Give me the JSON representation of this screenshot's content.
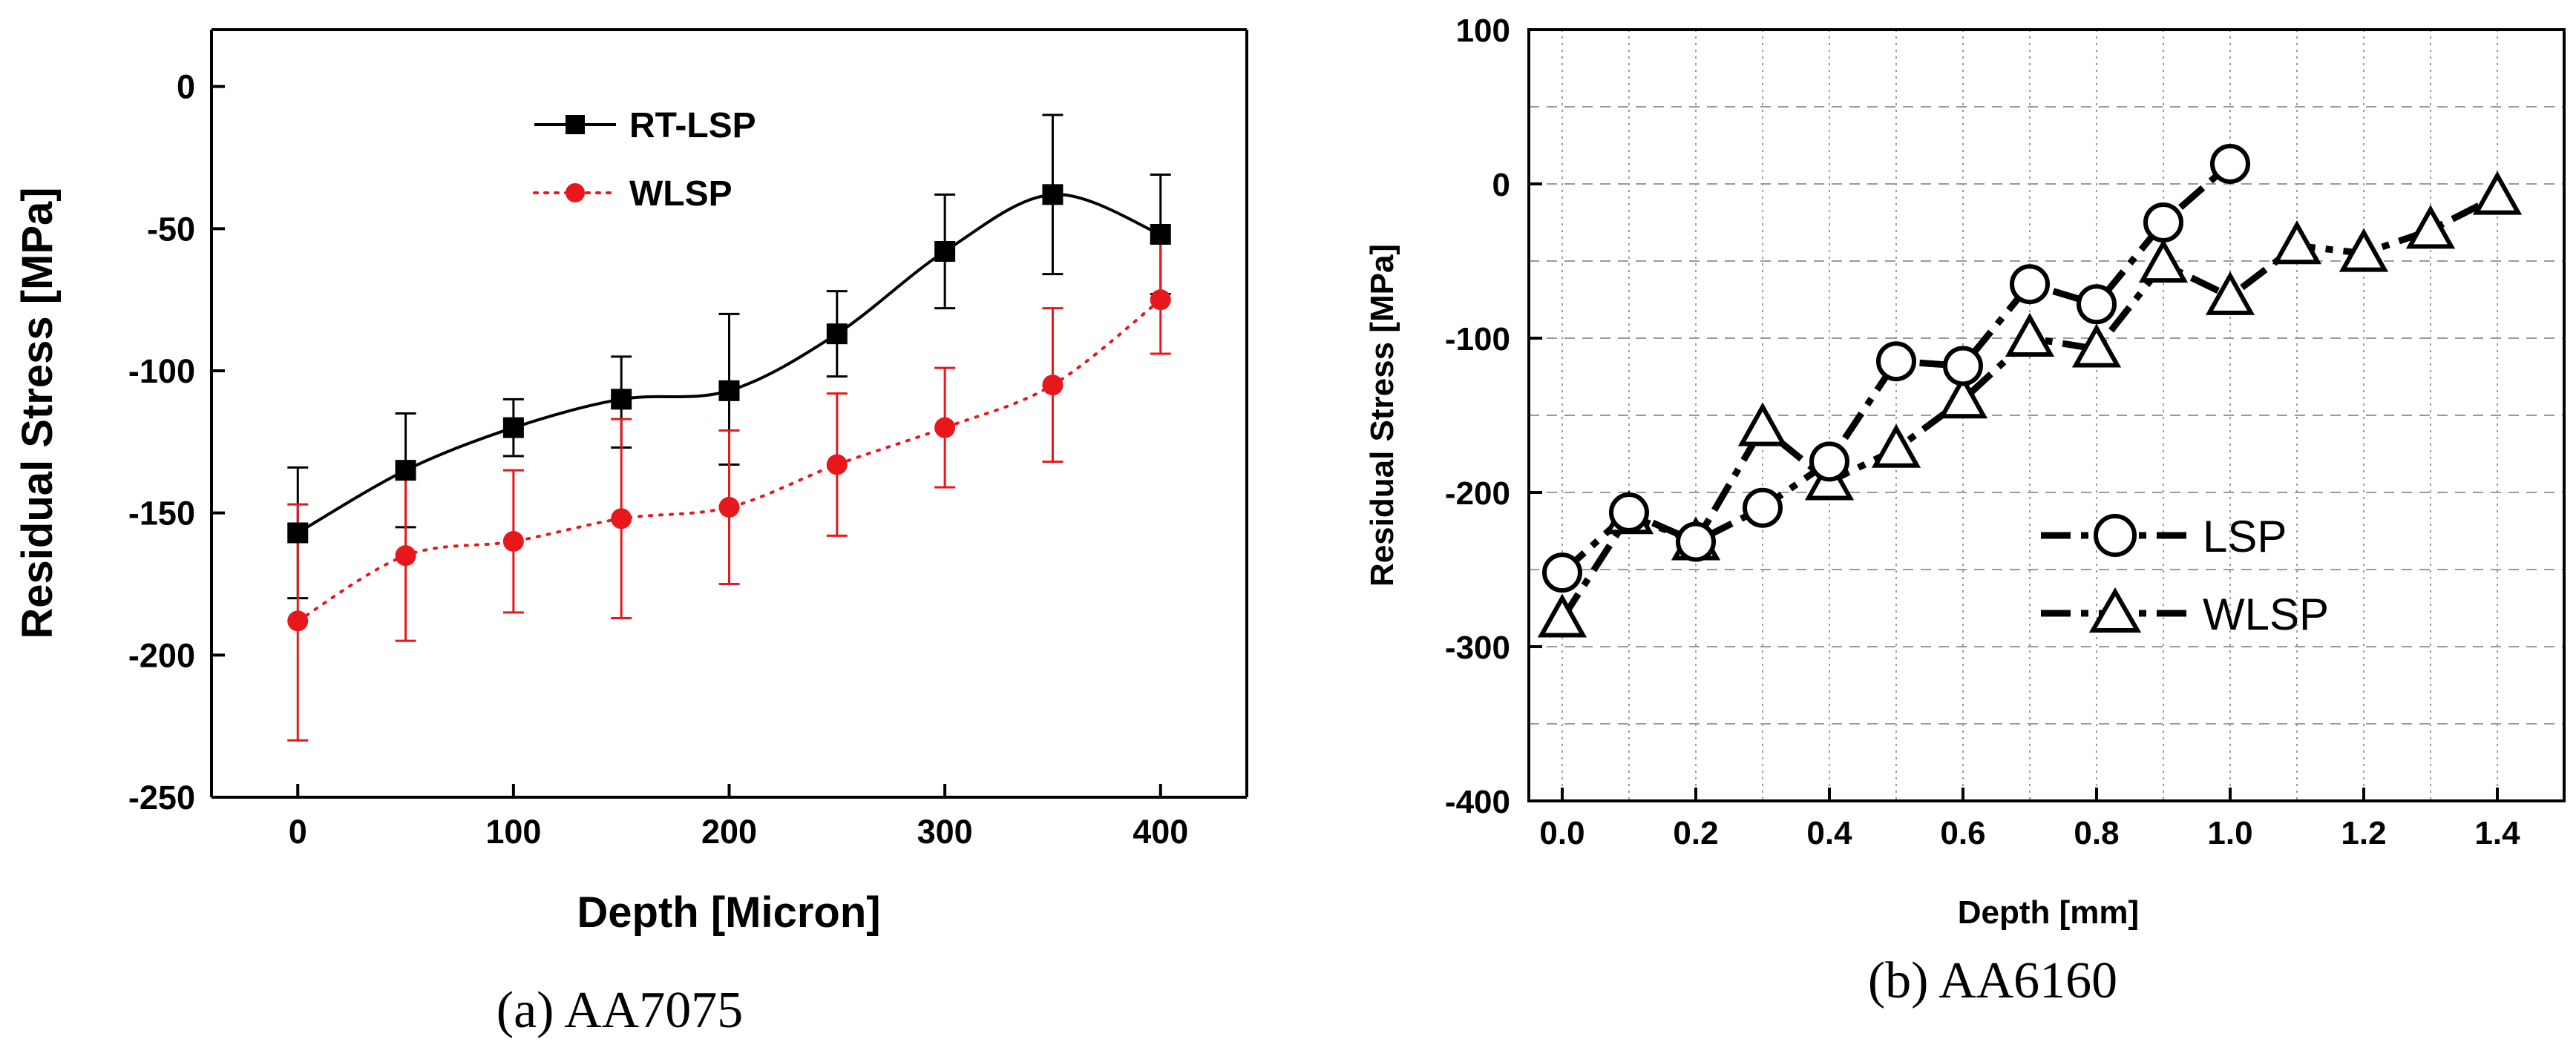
{
  "chart_data": [
    {
      "type": "line",
      "caption": "(a) AA7075",
      "xlabel": "Depth [Micron]",
      "ylabel": "Residual Stress [MPa]",
      "xlim": [
        -40,
        440
      ],
      "ylim": [
        -250,
        20
      ],
      "xticks": [
        0,
        100,
        200,
        300,
        400
      ],
      "yticks": [
        0,
        -50,
        -100,
        -150,
        -200,
        -250
      ],
      "xtick_labels": [
        "0",
        "100",
        "200",
        "300",
        "400"
      ],
      "ytick_labels": [
        "0",
        "-50",
        "-100",
        "-150",
        "-200",
        "-250"
      ],
      "legend_position": "top-center",
      "grid": false,
      "x": [
        0,
        50,
        100,
        150,
        200,
        250,
        300,
        350,
        400
      ],
      "series": [
        {
          "name": "RT-LSP",
          "color": "#000000",
          "marker": "square",
          "line_style": "smooth solid",
          "values": [
            -157,
            -135,
            -120,
            -110,
            -107,
            -87,
            -58,
            -38,
            -52
          ],
          "err_low": [
            -180,
            -155,
            -130,
            -127,
            -133,
            -102,
            -78,
            -66,
            -73
          ],
          "err_high": [
            -134,
            -115,
            -110,
            -95,
            -80,
            -72,
            -38,
            -10,
            -31
          ]
        },
        {
          "name": "WLSP",
          "color": "#e8171c",
          "marker": "circle",
          "line_style": "dotted",
          "values": [
            -188,
            -165,
            -160,
            -152,
            -148,
            -133,
            -120,
            -105,
            -75
          ],
          "err_low": [
            -230,
            -195,
            -185,
            -187,
            -175,
            -158,
            -141,
            -132,
            -94
          ],
          "err_high": [
            -147,
            -137,
            -135,
            -117,
            -121,
            -108,
            -99,
            -78,
            -55
          ]
        }
      ]
    },
    {
      "type": "line",
      "caption": "(b) AA6160",
      "xlabel": "Depth [mm]",
      "ylabel": "Residual Stress [MPa]",
      "xlim": [
        -0.05,
        1.5
      ],
      "ylim": [
        -400,
        100
      ],
      "xticks": [
        0.0,
        0.2,
        0.4,
        0.6,
        0.8,
        1.0,
        1.2,
        1.4
      ],
      "yticks": [
        100,
        0,
        -100,
        -200,
        -300,
        -400
      ],
      "xtick_labels": [
        "0.0",
        "0.2",
        "0.4",
        "0.6",
        "0.8",
        "1.0",
        "1.2",
        "1.4"
      ],
      "ytick_labels": [
        "100",
        "0",
        "-100",
        "-200",
        "-300",
        "-400"
      ],
      "grid": true,
      "legend_position": "center-right",
      "series": [
        {
          "name": "LSP",
          "color": "#000000",
          "marker": "open-circle",
          "line_style": "dash-dot",
          "x": [
            0.0,
            0.1,
            0.2,
            0.3,
            0.4,
            0.5,
            0.6,
            0.7,
            0.8,
            0.9,
            1.0
          ],
          "values": [
            -252,
            -213,
            -232,
            -210,
            -180,
            -115,
            -118,
            -65,
            -78,
            -25,
            13
          ]
        },
        {
          "name": "WLSP",
          "color": "#000000",
          "marker": "open-triangle",
          "line_style": "dash-dot",
          "x": [
            0.0,
            0.1,
            0.2,
            0.3,
            0.4,
            0.5,
            0.6,
            0.7,
            0.8,
            0.9,
            1.0,
            1.1,
            1.2,
            1.3,
            1.4
          ],
          "values": [
            -282,
            -215,
            -232,
            -158,
            -193,
            -172,
            -140,
            -100,
            -107,
            -52,
            -73,
            -40,
            -45,
            -30,
            -8
          ]
        }
      ]
    }
  ]
}
